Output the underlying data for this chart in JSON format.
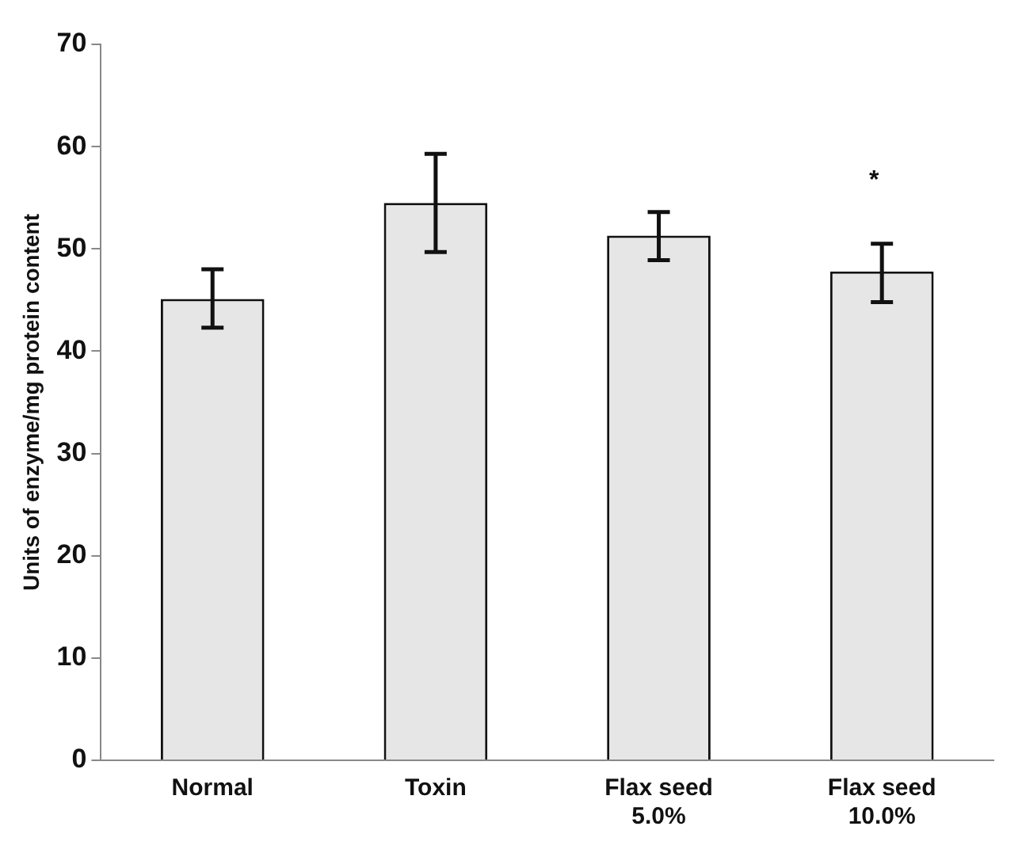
{
  "chart_data": {
    "type": "bar",
    "ylabel": "Units of enzyme/mg protein content",
    "categories": [
      "Normal",
      "Toxin",
      "Flax seed 5.0%",
      "Flax seed 10.0%"
    ],
    "values": [
      45.1,
      54.5,
      51.3,
      47.8
    ],
    "errors": [
      [
        42.3,
        48.0
      ],
      [
        49.7,
        59.3
      ],
      [
        48.9,
        53.6
      ],
      [
        44.8,
        50.5
      ]
    ],
    "color": "#e6e6e6",
    "ylim": [
      0,
      70
    ],
    "yticks": [
      0,
      10,
      20,
      30,
      40,
      50,
      60,
      70
    ],
    "grid": false,
    "legend": false,
    "annotations": [
      "*"
    ]
  }
}
